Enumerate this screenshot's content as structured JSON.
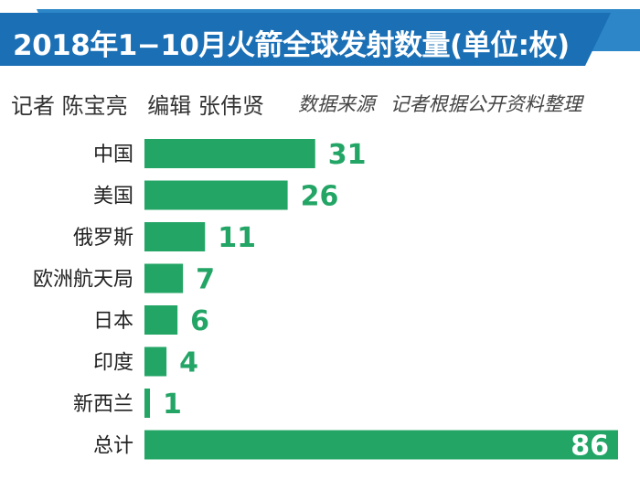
{
  "header": {
    "title": "2018年1−10月火箭全球发射数量(单位:枚)",
    "banner_color": "#1a6fb5",
    "stripe_color": "#2c86c7"
  },
  "credits": {
    "reporter": "记者 陈宝亮",
    "editor": "编辑 张伟贤",
    "source": "数据来源",
    "source_detail": "记者根据公开资料整理"
  },
  "chart_data": {
    "type": "bar",
    "orientation": "horizontal",
    "categories": [
      "中国",
      "美国",
      "俄罗斯",
      "欧洲航天局",
      "日本",
      "印度",
      "新西兰",
      "总计"
    ],
    "values": [
      31,
      26,
      11,
      7,
      6,
      4,
      1,
      86
    ],
    "value_labels": [
      "31",
      "26",
      "11",
      "7",
      "6",
      "4",
      "1",
      "86"
    ],
    "title": "2018年1−10月火箭全球发射数量(单位:枚)",
    "xlabel": "",
    "ylabel": "",
    "grid": false,
    "bar_color": "#23a566",
    "label_color": "#23a566",
    "total_label_color": "#ffffff"
  }
}
